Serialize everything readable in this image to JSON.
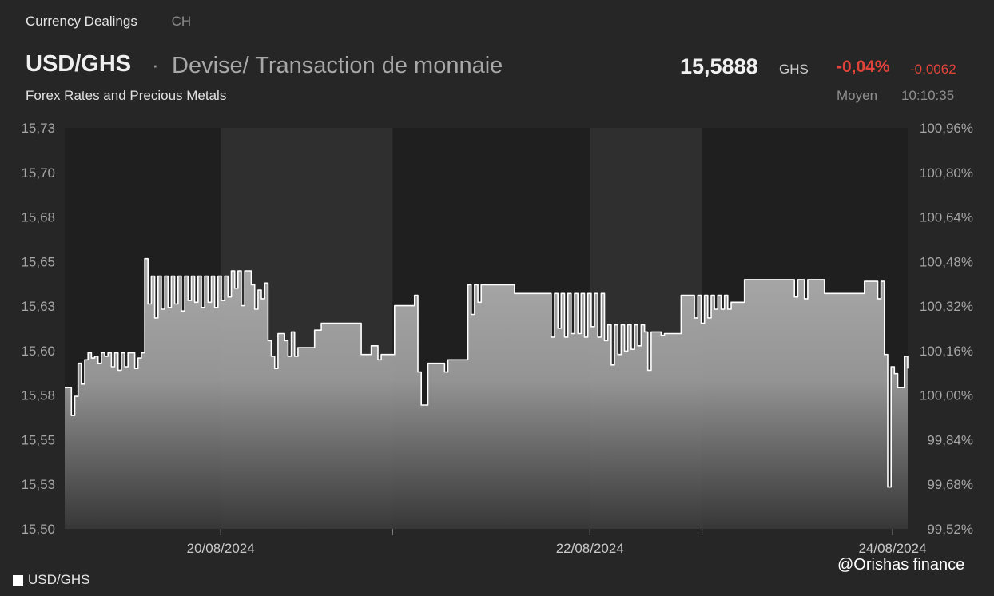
{
  "header": {
    "nav": [
      "Currency Dealings",
      "CH"
    ],
    "pair": "USD/GHS",
    "separator": "·",
    "description": "Devise/ Transaction de monnaie",
    "subtitle": "Forex Rates and Precious Metals",
    "price": "15,5888",
    "currency": "GHS",
    "change_pct": "-0,04%",
    "change_abs": "-0,0062",
    "price_type": "Moyen",
    "time": "10:10:35"
  },
  "colors": {
    "background": "#262626",
    "dark_band": "#1f1f1f",
    "light_band": "#2f2f2f",
    "line": "#ffffff",
    "negative": "#e0443a"
  },
  "watermark": "@Orishas finance",
  "chart_data": {
    "type": "area",
    "series": [
      {
        "name": "USD/GHS",
        "values": [
          15.581,
          15.581,
          15.565,
          15.576,
          15.595,
          15.583,
          15.597,
          15.601,
          15.598,
          15.599,
          15.595,
          15.601,
          15.599,
          15.601,
          15.593,
          15.601,
          15.591,
          15.601,
          15.593,
          15.601,
          15.601,
          15.592,
          15.598,
          15.601,
          15.655,
          15.629,
          15.645,
          15.621,
          15.645,
          15.626,
          15.645,
          15.627,
          15.645,
          15.629,
          15.645,
          15.625,
          15.645,
          15.631,
          15.645,
          15.63,
          15.645,
          15.627,
          15.645,
          15.63,
          15.645,
          15.627,
          15.645,
          15.631,
          15.645,
          15.633,
          15.648,
          15.638,
          15.648,
          15.628,
          15.648,
          15.648,
          15.64,
          15.626,
          15.637,
          15.632,
          15.641,
          15.608,
          15.599,
          15.592,
          15.612,
          15.612,
          15.608,
          15.599,
          15.613,
          15.599,
          15.604,
          15.604,
          15.604,
          15.604,
          15.604,
          15.614,
          15.614,
          15.618,
          15.618,
          15.618,
          15.618,
          15.618,
          15.618,
          15.618,
          15.618,
          15.618,
          15.618,
          15.618,
          15.618,
          15.6,
          15.6,
          15.6,
          15.605,
          15.605,
          15.597,
          15.6,
          15.6,
          15.6,
          15.6,
          15.628,
          15.628,
          15.628,
          15.628,
          15.628,
          15.628,
          15.634,
          15.59,
          15.571,
          15.571,
          15.595,
          15.595,
          15.595,
          15.595,
          15.595,
          15.59,
          15.597,
          15.597,
          15.597,
          15.597,
          15.597,
          15.597,
          15.64,
          15.623,
          15.64,
          15.63,
          15.64,
          15.64,
          15.64,
          15.64,
          15.64,
          15.64,
          15.64,
          15.64,
          15.64,
          15.64,
          15.635,
          15.635,
          15.635,
          15.635,
          15.635,
          15.635,
          15.635,
          15.635,
          15.635,
          15.635,
          15.635,
          15.61,
          15.635,
          15.615,
          15.635,
          15.61,
          15.635,
          15.612,
          15.635,
          15.612,
          15.635,
          15.61,
          15.635,
          15.616,
          15.635,
          15.61,
          15.635,
          15.608,
          15.617,
          15.594,
          15.617,
          15.6,
          15.617,
          15.602,
          15.617,
          15.603,
          15.617,
          15.605,
          15.617,
          15.613,
          15.591,
          15.613,
          15.613,
          15.613,
          15.611,
          15.612,
          15.612,
          15.612,
          15.612,
          15.612,
          15.634,
          15.634,
          15.634,
          15.634,
          15.621,
          15.634,
          15.618,
          15.634,
          15.621,
          15.634,
          15.626,
          15.634,
          15.626,
          15.634,
          15.626,
          15.63,
          15.63,
          15.63,
          15.63,
          15.643,
          15.643,
          15.643,
          15.643,
          15.643,
          15.643,
          15.643,
          15.643,
          15.643,
          15.643,
          15.643,
          15.643,
          15.643,
          15.643,
          15.643,
          15.633,
          15.643,
          15.643,
          15.632,
          15.643,
          15.643,
          15.643,
          15.643,
          15.643,
          15.635,
          15.635,
          15.635,
          15.635,
          15.635,
          15.635,
          15.635,
          15.635,
          15.635,
          15.635,
          15.635,
          15.635,
          15.642,
          15.642,
          15.642,
          15.642,
          15.632,
          15.642,
          15.6,
          15.524,
          15.593,
          15.589,
          15.581,
          15.581,
          15.599,
          15.592
        ]
      }
    ],
    "ylim": [
      15.5,
      15.73
    ],
    "y_ticks_left": [
      "15,73",
      "15,70",
      "15,68",
      "15,65",
      "15,63",
      "15,60",
      "15,58",
      "15,55",
      "15,53",
      "15,50"
    ],
    "y_ticks_right": [
      "100,96%",
      "100,80%",
      "100,64%",
      "100,48%",
      "100,32%",
      "100,16%",
      "100,00%",
      "99,84%",
      "99,68%",
      "99,52%"
    ],
    "x_ticks": [
      {
        "label": "20/08/2024",
        "at": 0.185
      },
      {
        "label": "",
        "at": 0.389
      },
      {
        "label": "22/08/2024",
        "at": 0.623
      },
      {
        "label": "",
        "at": 0.756
      },
      {
        "label": "24/08/2024",
        "at": 0.982
      }
    ],
    "period_bands": [
      {
        "from": 0.0,
        "to": 0.185,
        "shade": "dark"
      },
      {
        "from": 0.185,
        "to": 0.389,
        "shade": "light"
      },
      {
        "from": 0.389,
        "to": 0.623,
        "shade": "dark"
      },
      {
        "from": 0.623,
        "to": 0.756,
        "shade": "light"
      },
      {
        "from": 0.756,
        "to": 0.978,
        "shade": "dark"
      },
      {
        "from": 0.978,
        "to": 1.0,
        "shade": "dark"
      }
    ],
    "legend": [
      "USD/GHS"
    ],
    "grid": false
  }
}
